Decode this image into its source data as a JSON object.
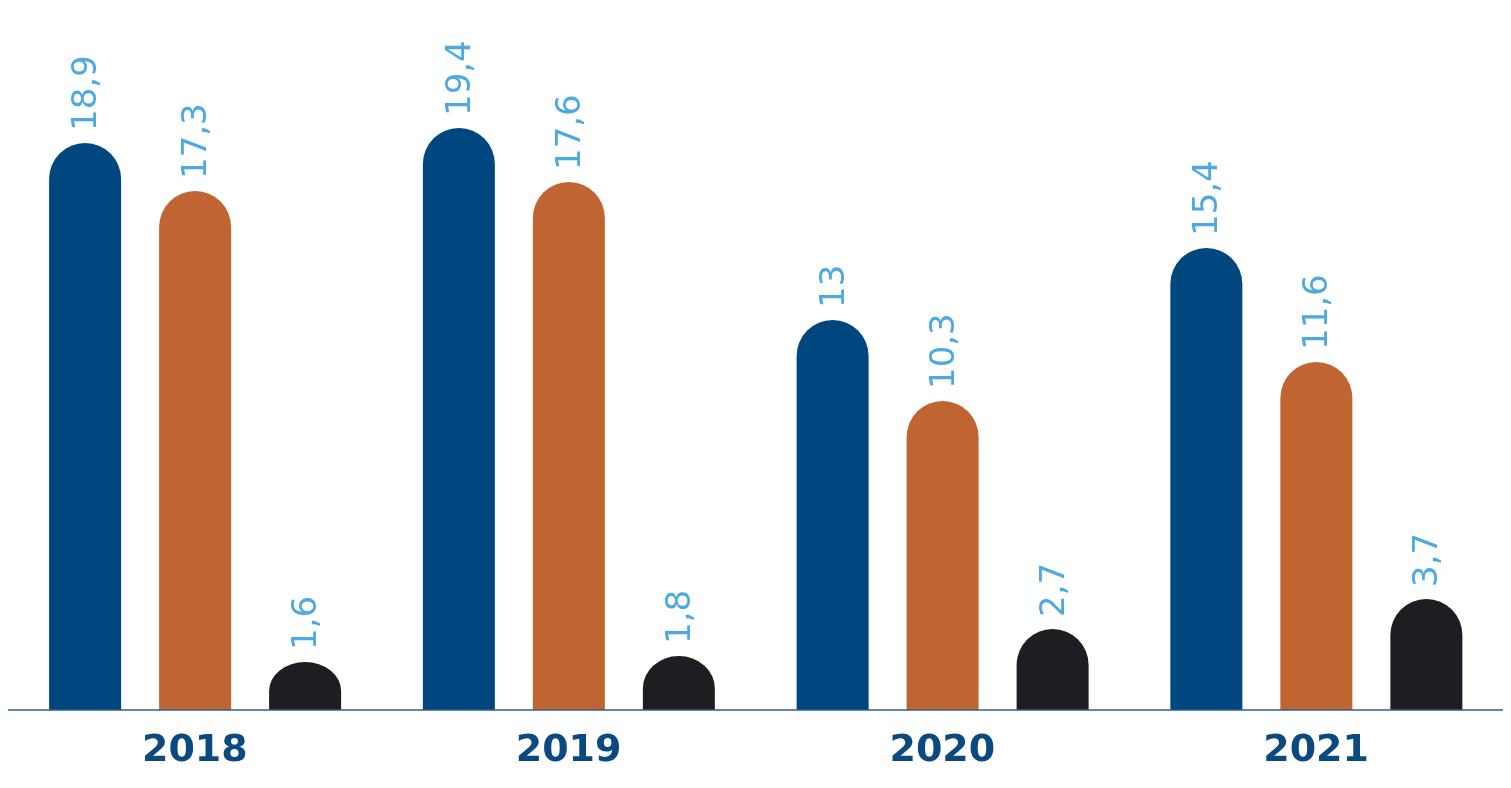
{
  "chart_data": {
    "type": "bar",
    "categories": [
      "2018",
      "2019",
      "2020",
      "2021"
    ],
    "tick_labels": "x",
    "series": [
      {
        "color": "#00467f",
        "values": [
          18.9,
          19.4,
          13,
          15.4
        ],
        "value_labels": [
          "18,9",
          "19,4",
          "13",
          "15,4"
        ]
      },
      {
        "color": "#c06431",
        "values": [
          17.3,
          17.6,
          10.3,
          11.6
        ],
        "value_labels": [
          "17,3",
          "17,6",
          "10,3",
          "11,6"
        ]
      },
      {
        "color": "#1e1d22",
        "values": [
          1.6,
          1.8,
          2.7,
          3.7
        ],
        "value_labels": [
          "1,6",
          "1,8",
          "2,7",
          "3,7"
        ]
      }
    ]
  }
}
